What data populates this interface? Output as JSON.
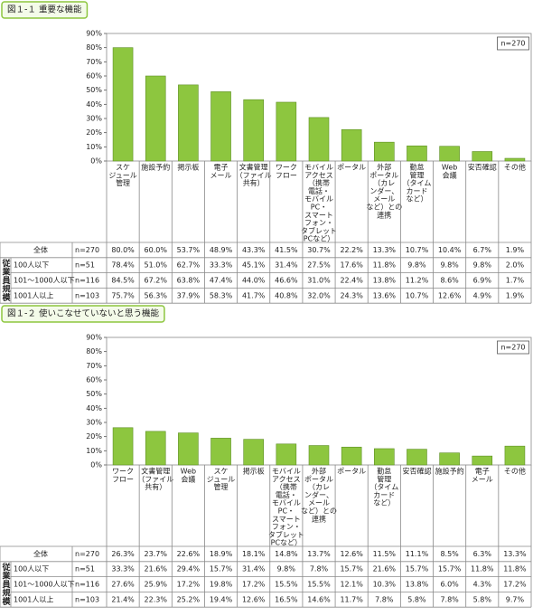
{
  "chart_data": [
    {
      "type": "bar",
      "title": "図１-１ 重要な機能",
      "note": "n=270",
      "color": "#8dc63f",
      "grid": false,
      "categories": [
        [
          "スケ",
          "ジュール",
          "管理"
        ],
        [
          "施設予約"
        ],
        [
          "掲示板"
        ],
        [
          "電子",
          "メール"
        ],
        [
          "文書管理",
          "（ファイル",
          "共有）"
        ],
        [
          "ワーク",
          "フロー"
        ],
        [
          "モバイル",
          "アクセス",
          "（携帯",
          "電話・",
          "モバイル",
          "PC・",
          "スマート",
          "フォン・",
          "タブレット",
          "PCなど）"
        ],
        [
          "ポータル"
        ],
        [
          "外部",
          "ポータル",
          "（カレ",
          "ンダー、",
          "メール",
          "など）との",
          "連携"
        ],
        [
          "勤怠",
          "管理",
          "（タイム",
          "カード",
          "など）"
        ],
        [
          "Web",
          "会議"
        ],
        [
          "安否確認"
        ],
        [
          "その他"
        ]
      ],
      "values": [
        80.0,
        60.0,
        53.7,
        48.9,
        43.3,
        41.5,
        30.7,
        22.2,
        13.3,
        10.7,
        10.4,
        6.7,
        1.9
      ],
      "ylim": [
        0,
        90
      ],
      "yticks": [
        {
          "value": 0,
          "label": "0%"
        },
        {
          "value": 10,
          "label": "10%"
        },
        {
          "value": 20,
          "label": "20%"
        },
        {
          "value": 30,
          "label": "30%"
        },
        {
          "value": 40,
          "label": "40%"
        },
        {
          "value": 50,
          "label": "50%"
        },
        {
          "value": 60,
          "label": "60%"
        },
        {
          "value": 70,
          "label": "70%"
        },
        {
          "value": 80,
          "label": "80%"
        },
        {
          "value": 90,
          "label": "90%"
        }
      ],
      "table": {
        "group_label": "従業員規模",
        "rows": [
          {
            "label": "全体",
            "n": "n=270",
            "cells": [
              "80.0%",
              "60.0%",
              "53.7%",
              "48.9%",
              "43.3%",
              "41.5%",
              "30.7%",
              "22.2%",
              "13.3%",
              "10.7%",
              "10.4%",
              "6.7%",
              "1.9%"
            ]
          },
          {
            "label": "100人以下",
            "n": "n=51",
            "cells": [
              "78.4%",
              "51.0%",
              "62.7%",
              "33.3%",
              "45.1%",
              "31.4%",
              "27.5%",
              "17.6%",
              "11.8%",
              "9.8%",
              "9.8%",
              "9.8%",
              "2.0%"
            ]
          },
          {
            "label": "101〜1000人以下",
            "n": "n=116",
            "cells": [
              "84.5%",
              "67.2%",
              "63.8%",
              "47.4%",
              "44.0%",
              "46.6%",
              "31.0%",
              "22.4%",
              "13.8%",
              "11.2%",
              "8.6%",
              "6.9%",
              "1.7%"
            ]
          },
          {
            "label": "1001人以上",
            "n": "n=103",
            "cells": [
              "75.7%",
              "56.3%",
              "37.9%",
              "58.3%",
              "41.7%",
              "40.8%",
              "32.0%",
              "24.3%",
              "13.6%",
              "10.7%",
              "12.6%",
              "4.9%",
              "1.9%"
            ]
          }
        ]
      }
    },
    {
      "type": "bar",
      "title": "図１-２ 使いこなせていないと思う機能",
      "note": "n=270",
      "color": "#8dc63f",
      "grid": false,
      "categories": [
        [
          "ワーク",
          "フロー"
        ],
        [
          "文書管理",
          "（ファイル",
          "共有）"
        ],
        [
          "Web",
          "会議"
        ],
        [
          "スケ",
          "ジュール",
          "管理"
        ],
        [
          "掲示板"
        ],
        [
          "モバイル",
          "アクセス",
          "（携帯",
          "電話・",
          "モバイル",
          "PC・",
          "スマート",
          "フォン・",
          "タブレット",
          "PCなど）"
        ],
        [
          "外部",
          "ポータル",
          "（カレ",
          "ンダー、",
          "メール",
          "など）との",
          "連携"
        ],
        [
          "ポータル"
        ],
        [
          "勤怠",
          "管理",
          "（タイム",
          "カード",
          "など）"
        ],
        [
          "安否確認"
        ],
        [
          "施設予約"
        ],
        [
          "電子",
          "メール"
        ],
        [
          "その他"
        ]
      ],
      "values": [
        26.3,
        23.7,
        22.6,
        18.9,
        18.1,
        14.8,
        13.7,
        12.6,
        11.5,
        11.1,
        8.5,
        6.3,
        13.3
      ],
      "ylim": [
        0,
        90
      ],
      "yticks": [
        {
          "value": 0,
          "label": "0%"
        },
        {
          "value": 10,
          "label": "10%"
        },
        {
          "value": 20,
          "label": "20%"
        },
        {
          "value": 30,
          "label": "30%"
        },
        {
          "value": 40,
          "label": "40%"
        },
        {
          "value": 50,
          "label": "50%"
        },
        {
          "value": 60,
          "label": "60%"
        },
        {
          "value": 70,
          "label": "70%"
        },
        {
          "value": 80,
          "label": "80%"
        },
        {
          "value": 90,
          "label": "90%"
        }
      ],
      "table": {
        "group_label": "従業員規模",
        "rows": [
          {
            "label": "全体",
            "n": "n=270",
            "cells": [
              "26.3%",
              "23.7%",
              "22.6%",
              "18.9%",
              "18.1%",
              "14.8%",
              "13.7%",
              "12.6%",
              "11.5%",
              "11.1%",
              "8.5%",
              "6.3%",
              "13.3%"
            ]
          },
          {
            "label": "100人以下",
            "n": "n=51",
            "cells": [
              "33.3%",
              "21.6%",
              "29.4%",
              "15.7%",
              "31.4%",
              "9.8%",
              "7.8%",
              "15.7%",
              "21.6%",
              "15.7%",
              "15.7%",
              "11.8%",
              "11.8%"
            ]
          },
          {
            "label": "101〜1000人以下",
            "n": "n=116",
            "cells": [
              "27.6%",
              "25.9%",
              "17.2%",
              "19.8%",
              "17.2%",
              "15.5%",
              "15.5%",
              "12.1%",
              "10.3%",
              "13.8%",
              "6.0%",
              "4.3%",
              "17.2%"
            ]
          },
          {
            "label": "1001人以上",
            "n": "n=103",
            "cells": [
              "21.4%",
              "22.3%",
              "25.2%",
              "19.4%",
              "12.6%",
              "16.5%",
              "14.6%",
              "11.7%",
              "7.8%",
              "5.8%",
              "7.8%",
              "5.8%",
              "9.7%"
            ]
          }
        ]
      }
    }
  ]
}
